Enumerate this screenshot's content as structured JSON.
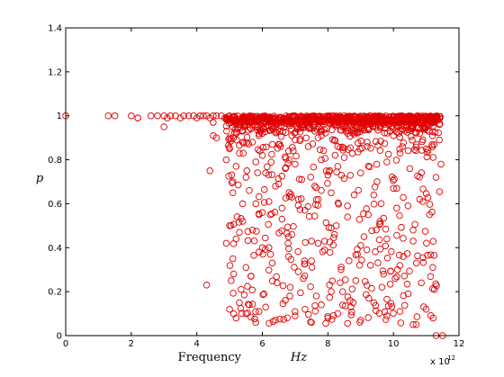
{
  "chart_data": {
    "type": "scatter",
    "xlabel": "Frequency",
    "xlabel_unit": "Hz",
    "ylabel": "p",
    "x_multiplier_base": "x 10",
    "x_multiplier_exp": "12",
    "xlim": [
      0,
      12
    ],
    "ylim": [
      0,
      1.4
    ],
    "xticks": [
      "0",
      "2",
      "4",
      "6",
      "8",
      "10",
      "12"
    ],
    "yticks": [
      "0",
      "0.2",
      "0.4",
      "0.6",
      "0.8",
      "1",
      "1.2",
      "1.4"
    ],
    "grid": false,
    "marker": "open-circle",
    "marker_color": "#e00000",
    "series": [
      {
        "x": [
          0.0,
          1.3,
          1.5,
          2.0,
          2.2,
          2.6,
          2.8,
          3.0,
          3.1,
          3.2,
          3.35,
          3.5,
          3.6,
          3.75,
          3.9,
          4.0,
          4.1,
          4.2,
          4.3,
          4.4,
          4.5,
          4.6,
          4.75,
          4.85,
          2.2,
          3.0,
          4.5,
          4.4,
          4.5,
          4.3,
          4.6,
          4.9,
          5.0,
          5.1,
          5.2,
          5.3,
          5.4,
          5.5,
          5.6,
          5.7,
          5.8,
          5.9,
          6.0,
          6.1,
          6.2,
          6.3,
          6.5,
          6.6,
          6.7,
          6.8,
          6.9,
          7.0,
          7.2,
          7.4,
          7.6,
          7.8,
          8.0,
          8.1,
          8.2,
          8.3,
          8.5,
          8.8,
          9.0,
          9.2,
          9.5,
          9.8,
          10.0,
          10.2,
          10.5,
          10.8,
          11.0,
          11.3,
          11.45,
          5.0,
          5.2,
          5.4,
          5.7,
          6.0,
          6.2,
          6.6,
          6.9,
          7.3,
          7.7,
          8.1,
          8.6,
          9.1,
          9.6,
          10.1,
          10.6,
          11.1,
          5.1,
          5.5,
          5.9,
          6.3,
          6.8,
          7.1,
          7.5,
          7.9,
          8.4,
          8.9,
          9.3,
          9.7,
          10.3,
          10.7,
          11.2,
          5.05,
          5.35,
          5.65,
          6.05,
          6.45,
          6.85,
          7.25,
          7.65,
          8.05,
          8.45,
          8.85,
          9.25,
          9.65,
          10.05,
          10.45,
          10.85,
          11.25,
          5.0,
          5.2,
          5.3,
          5.5,
          5.6,
          5.8,
          5.9,
          6.1,
          6.4,
          6.7,
          7.0,
          7.3,
          7.5,
          7.8,
          8.0,
          8.3,
          8.7,
          9.0,
          9.4,
          9.8,
          10.2,
          10.6,
          11.0,
          11.3,
          5.1,
          5.4,
          5.7,
          6.0,
          6.3,
          6.6,
          6.9,
          7.2,
          7.6,
          8.2,
          8.6,
          9.0,
          9.5,
          9.9,
          10.4,
          10.8,
          11.4,
          5.0,
          5.3,
          5.6,
          6.2,
          6.8,
          7.4,
          8.0,
          8.8,
          9.6,
          10.4,
          11.2,
          5.2,
          5.5,
          6.1,
          6.7,
          7.3,
          7.9,
          8.5,
          9.1,
          9.7,
          10.3,
          10.9,
          5.0,
          5.4,
          5.9,
          6.5,
          7.0,
          7.7,
          8.3,
          9.2,
          10.0,
          10.7,
          11.4,
          5.1,
          5.8,
          6.4,
          7.1,
          7.8,
          8.6,
          9.4,
          10.1,
          10.9,
          4.9,
          5.3,
          6.0,
          6.8,
          7.5,
          8.2,
          9.0,
          9.8,
          10.6,
          11.5
        ],
        "y": [
          1.0,
          1.0,
          1.0,
          1.0,
          0.99,
          1.0,
          1.0,
          1.0,
          0.99,
          1.0,
          1.0,
          0.99,
          1.0,
          1.0,
          1.0,
          0.99,
          1.0,
          1.0,
          1.0,
          0.99,
          1.0,
          1.0,
          1.0,
          0.99,
          0.99,
          0.95,
          0.97,
          0.75,
          0.91,
          0.23,
          0.9,
          0.8,
          0.85,
          0.7,
          0.77,
          0.83,
          0.6,
          0.72,
          0.66,
          0.88,
          0.79,
          0.55,
          0.82,
          0.74,
          0.61,
          0.87,
          0.69,
          0.58,
          0.76,
          0.84,
          0.63,
          0.78,
          0.71,
          0.86,
          0.68,
          0.8,
          0.73,
          0.65,
          0.89,
          0.77,
          0.81,
          0.64,
          0.74,
          0.86,
          0.7,
          0.79,
          0.67,
          0.83,
          0.76,
          0.62,
          0.85,
          0.72,
          0.78,
          0.5,
          0.44,
          0.52,
          0.48,
          0.56,
          0.4,
          0.53,
          0.46,
          0.57,
          0.42,
          0.49,
          0.54,
          0.45,
          0.51,
          0.58,
          0.43,
          0.55,
          0.35,
          0.31,
          0.38,
          0.33,
          0.36,
          0.29,
          0.34,
          0.39,
          0.3,
          0.37,
          0.32,
          0.28,
          0.36,
          0.33,
          0.31,
          0.25,
          0.21,
          0.27,
          0.19,
          0.24,
          0.22,
          0.26,
          0.18,
          0.23,
          0.2,
          0.25,
          0.17,
          0.22,
          0.26,
          0.19,
          0.24,
          0.21,
          0.12,
          0.08,
          0.15,
          0.1,
          0.14,
          0.06,
          0.11,
          0.13,
          0.07,
          0.16,
          0.09,
          0.12,
          0.06,
          0.14,
          0.08,
          0.1,
          0.13,
          0.07,
          0.15,
          0.09,
          0.11,
          0.05,
          0.12,
          0.0,
          0.95,
          0.93,
          0.96,
          0.92,
          0.94,
          0.97,
          0.91,
          0.95,
          0.93,
          0.96,
          0.92,
          0.94,
          0.97,
          0.93,
          0.95,
          0.92,
          0.96,
          0.98,
          0.97,
          0.99,
          0.98,
          0.97,
          0.99,
          0.98,
          0.97,
          0.99,
          0.98,
          0.97,
          0.96,
          0.98,
          0.95,
          0.97,
          0.96,
          0.98,
          0.95,
          0.97,
          0.96,
          0.98,
          0.95,
          0.9,
          0.88,
          0.91,
          0.87,
          0.89,
          0.9,
          0.86,
          0.88,
          0.91,
          0.87,
          0.89,
          0.65,
          0.6,
          0.68,
          0.62,
          0.66,
          0.59,
          0.64,
          0.67,
          0.61,
          0.42,
          0.47,
          0.4,
          0.45,
          0.43,
          0.46,
          0.41,
          0.44,
          0.48,
          0.0
        ]
      }
    ]
  }
}
